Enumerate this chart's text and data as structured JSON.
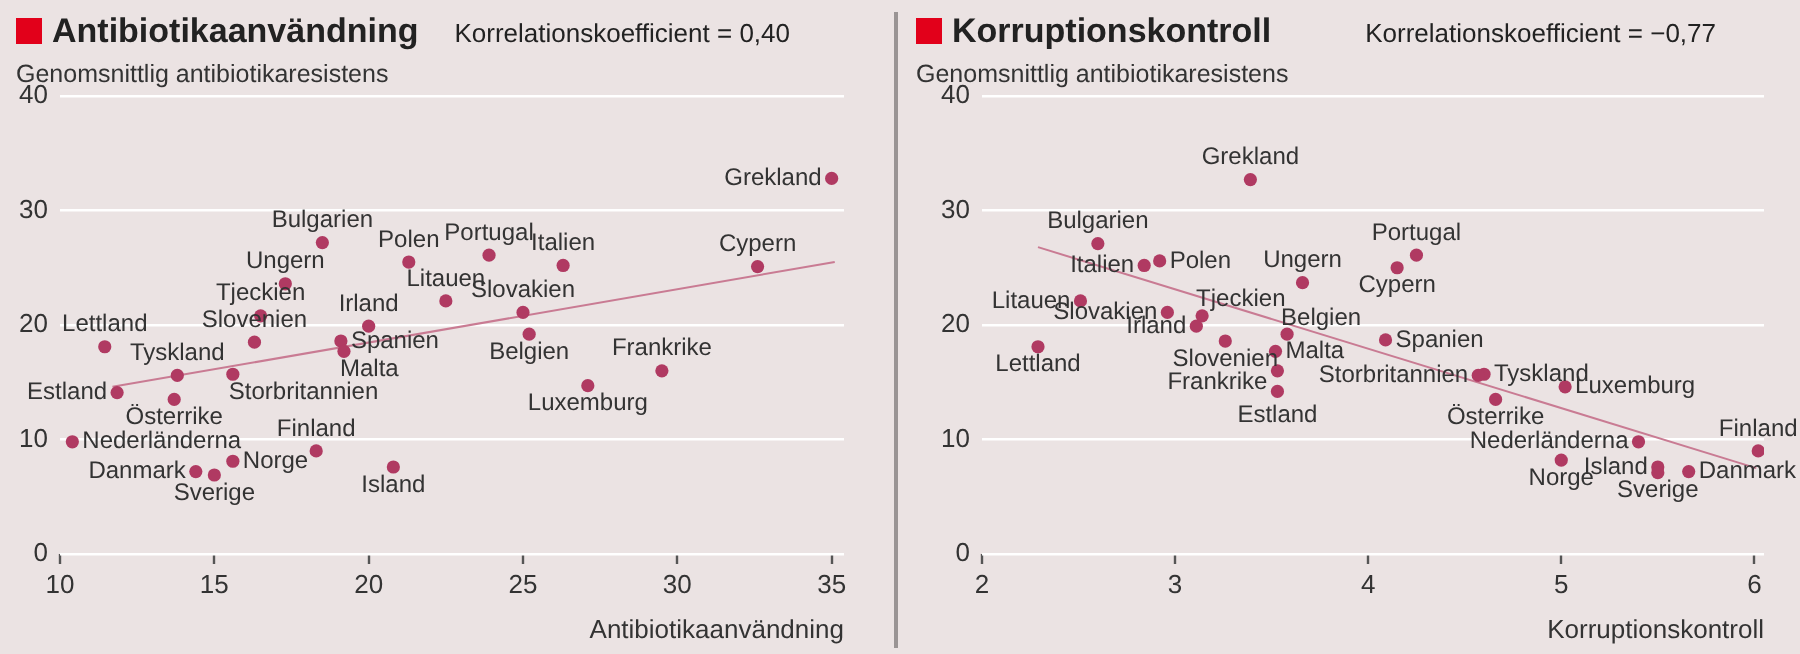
{
  "chart_data": [
    {
      "type": "scatter",
      "title": "Antibiotikaanvändning",
      "ylabel": "Genomsnittlig antibiotikaresistens",
      "xlabel": "Antibiotikaanvändning",
      "xlim": [
        10,
        35.4
      ],
      "xticks": [
        10,
        15,
        20,
        25,
        30,
        35
      ],
      "ylim": [
        0,
        40
      ],
      "yticks": [
        0,
        10,
        20,
        30,
        40
      ],
      "grid": "y",
      "series": [
        {
          "marker": "circle",
          "color": "#b03a62",
          "x": [
            11.45,
            11.85,
            13.8,
            13.7,
            10.4,
            14.4,
            15.0,
            15.6,
            15.6,
            16.3,
            16.5,
            17.3,
            18.5,
            21.3,
            20.0,
            19.1,
            19.2,
            18.3,
            20.8,
            22.5,
            23.9,
            26.3,
            25.0,
            25.2,
            27.1,
            29.5,
            32.6,
            35.0
          ],
          "values": [
            18.1,
            14.1,
            15.6,
            13.5,
            9.8,
            7.2,
            6.9,
            8.1,
            15.7,
            18.5,
            20.8,
            23.6,
            27.2,
            25.5,
            19.9,
            18.6,
            17.7,
            9.0,
            7.6,
            22.1,
            26.1,
            25.2,
            21.1,
            19.2,
            14.7,
            16.0,
            25.1,
            32.8
          ]
        },
        {
          "type": "line",
          "color": "#c97b93",
          "x": [
            11.7,
            35.1
          ],
          "values": [
            14.6,
            25.5
          ]
        }
      ],
      "annotations": [
        "Korrelationskoefficient = 0,40",
        {
          "text": "Lettland",
          "x": 11.45,
          "y": 18.1
        },
        {
          "text": "Estland",
          "x": 11.85,
          "y": 14.1
        },
        {
          "text": "Tyskland",
          "x": 13.8,
          "y": 15.6
        },
        {
          "text": "Österrike",
          "x": 13.7,
          "y": 13.5
        },
        {
          "text": "Nederländerna",
          "x": 10.4,
          "y": 9.8
        },
        {
          "text": "Danmark",
          "x": 14.4,
          "y": 7.2
        },
        {
          "text": "Sverige",
          "x": 15.0,
          "y": 6.9
        },
        {
          "text": "Norge",
          "x": 15.6,
          "y": 8.1
        },
        {
          "text": "Storbritannien",
          "x": 15.6,
          "y": 15.7
        },
        {
          "text": "Slovenien",
          "x": 16.3,
          "y": 18.5
        },
        {
          "text": "Tjeckien",
          "x": 16.5,
          "y": 20.8
        },
        {
          "text": "Ungern",
          "x": 17.3,
          "y": 23.6
        },
        {
          "text": "Bulgarien",
          "x": 18.5,
          "y": 27.2
        },
        {
          "text": "Polen",
          "x": 21.3,
          "y": 25.5
        },
        {
          "text": "Irland",
          "x": 20.0,
          "y": 19.9
        },
        {
          "text": "Spanien",
          "x": 19.1,
          "y": 18.6
        },
        {
          "text": "Malta",
          "x": 19.2,
          "y": 17.7
        },
        {
          "text": "Finland",
          "x": 18.3,
          "y": 9.0
        },
        {
          "text": "Island",
          "x": 20.8,
          "y": 7.6
        },
        {
          "text": "Litauen",
          "x": 22.5,
          "y": 22.1
        },
        {
          "text": "Portugal",
          "x": 23.9,
          "y": 26.1
        },
        {
          "text": "Italien",
          "x": 26.3,
          "y": 25.2
        },
        {
          "text": "Slovakien",
          "x": 25.0,
          "y": 21.1
        },
        {
          "text": "Belgien",
          "x": 25.2,
          "y": 19.2
        },
        {
          "text": "Luxemburg",
          "x": 27.1,
          "y": 14.7
        },
        {
          "text": "Frankrike",
          "x": 29.5,
          "y": 16.0
        },
        {
          "text": "Cypern",
          "x": 32.6,
          "y": 25.1
        },
        {
          "text": "Grekland",
          "x": 35.0,
          "y": 32.8
        }
      ]
    },
    {
      "type": "scatter",
      "title": "Korruptionskontroll",
      "ylabel": "Genomsnittlig antibiotikaresistens",
      "xlabel": "Korruptionskontroll",
      "xlim": [
        2,
        6.05
      ],
      "xticks": [
        2,
        3,
        4,
        5,
        6
      ],
      "ylim": [
        0,
        40
      ],
      "yticks": [
        0,
        10,
        20,
        30,
        40
      ],
      "grid": "y",
      "series": [
        {
          "marker": "circle",
          "color": "#b03a62",
          "x": [
            3.39,
            2.6,
            2.84,
            2.92,
            2.51,
            2.96,
            3.14,
            3.11,
            2.29,
            3.26,
            3.66,
            3.58,
            3.52,
            3.53,
            3.53,
            4.25,
            4.15,
            4.09,
            4.6,
            4.57,
            4.66,
            5.02,
            5.4,
            5.0,
            5.5,
            5.5,
            5.66,
            6.02
          ],
          "values": [
            32.7,
            27.1,
            25.2,
            25.6,
            22.1,
            21.1,
            20.8,
            19.9,
            18.1,
            18.6,
            23.7,
            19.2,
            17.7,
            16.0,
            14.2,
            26.1,
            25.0,
            18.7,
            15.7,
            15.6,
            13.5,
            14.6,
            9.8,
            8.2,
            7.6,
            7.1,
            7.2,
            9.0
          ]
        },
        {
          "type": "line",
          "color": "#c97b93",
          "x": [
            2.29,
            6.01
          ],
          "values": [
            26.8,
            7.5
          ]
        }
      ],
      "annotations": [
        "Korrelationskoefficient = −0,77",
        {
          "text": "Grekland",
          "x": 3.39,
          "y": 32.7
        },
        {
          "text": "Bulgarien",
          "x": 2.6,
          "y": 27.1
        },
        {
          "text": "Italien",
          "x": 2.84,
          "y": 25.2
        },
        {
          "text": "Polen",
          "x": 2.92,
          "y": 25.6
        },
        {
          "text": "Litauen",
          "x": 2.51,
          "y": 22.1
        },
        {
          "text": "Slovakien",
          "x": 2.96,
          "y": 21.1
        },
        {
          "text": "Tjeckien",
          "x": 3.14,
          "y": 20.8
        },
        {
          "text": "Irland",
          "x": 3.11,
          "y": 19.9
        },
        {
          "text": "Lettland",
          "x": 2.29,
          "y": 18.1
        },
        {
          "text": "Slovenien",
          "x": 3.26,
          "y": 18.6
        },
        {
          "text": "Ungern",
          "x": 3.66,
          "y": 23.7
        },
        {
          "text": "Belgien",
          "x": 3.58,
          "y": 19.2
        },
        {
          "text": "Malta",
          "x": 3.52,
          "y": 17.7
        },
        {
          "text": "Frankrike",
          "x": 3.53,
          "y": 16.0
        },
        {
          "text": "Estland",
          "x": 3.53,
          "y": 14.2
        },
        {
          "text": "Portugal",
          "x": 4.25,
          "y": 26.1
        },
        {
          "text": "Cypern",
          "x": 4.15,
          "y": 25.0
        },
        {
          "text": "Spanien",
          "x": 4.09,
          "y": 18.7
        },
        {
          "text": "Tyskland",
          "x": 4.6,
          "y": 15.7
        },
        {
          "text": "Storbritannien",
          "x": 4.57,
          "y": 15.6
        },
        {
          "text": "Österrike",
          "x": 4.66,
          "y": 13.5
        },
        {
          "text": "Luxemburg",
          "x": 5.02,
          "y": 14.6
        },
        {
          "text": "Nederländerna",
          "x": 5.4,
          "y": 9.8
        },
        {
          "text": "Norge",
          "x": 5.0,
          "y": 8.2
        },
        {
          "text": "Island",
          "x": 5.5,
          "y": 7.6
        },
        {
          "text": "Sverige",
          "x": 5.5,
          "y": 7.1
        },
        {
          "text": "Danmark",
          "x": 5.66,
          "y": 7.2
        },
        {
          "text": "Finland",
          "x": 6.02,
          "y": 9.0
        }
      ]
    }
  ]
}
